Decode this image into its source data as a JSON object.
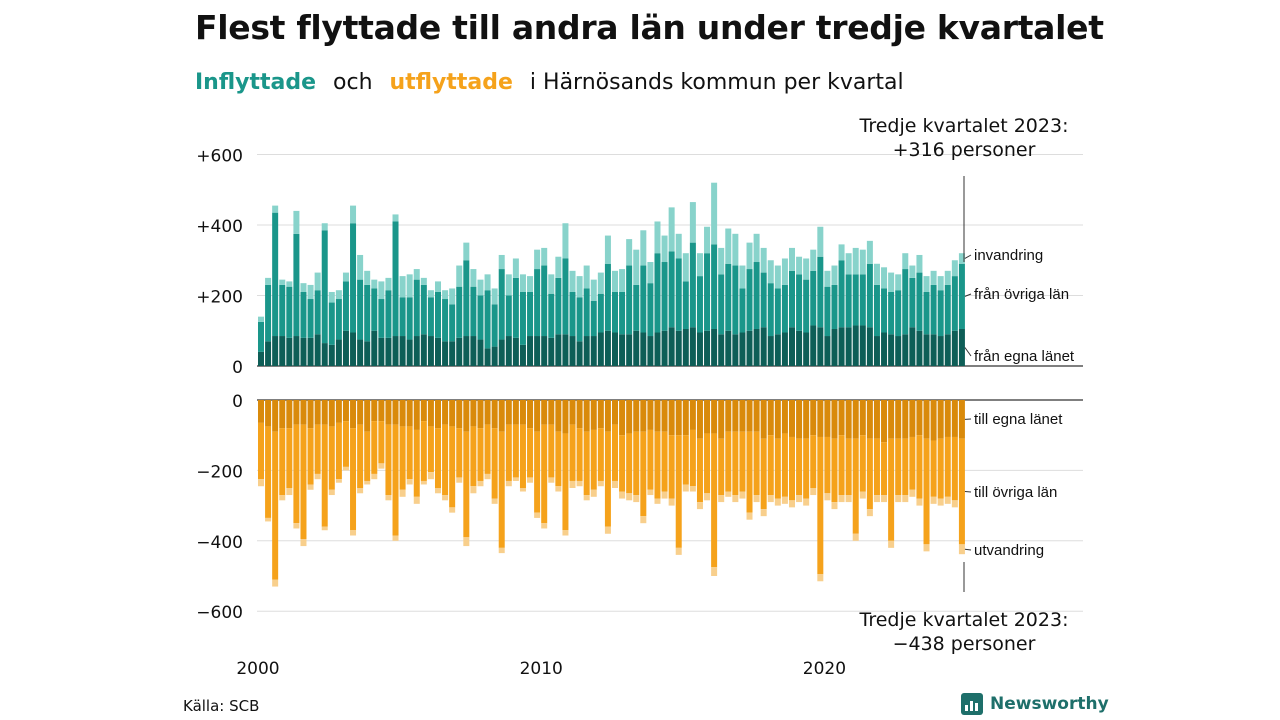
{
  "title": "Flest flyttade till andra län under tredje kvartalet",
  "subtitle": {
    "part_in": "Inflyttade",
    "part_and": "och",
    "part_out": "utflyttade",
    "part_rest": "i Härnösands  kommun  per  kvartal"
  },
  "source": "Källa: SCB",
  "brand": "Newsworthy",
  "colors": {
    "in_own": "#0e5e57",
    "in_other": "#1a968a",
    "in_abroad": "#88d3cb",
    "out_own": "#d98a0b",
    "out_other": "#f5a21b",
    "out_abroad": "#f8cf8c"
  },
  "chart_data": {
    "type": "bar",
    "stacked": true,
    "x_start": "2000 Q1",
    "x_ticks": [
      "2000",
      "2010",
      "2020"
    ],
    "annotation_top": [
      "Tredje kvartalet 2023:",
      "+316 personer"
    ],
    "annotation_bottom": [
      "Tredje kvartalet 2023:",
      "−438 personer"
    ],
    "inflow": {
      "ylim": [
        0,
        650
      ],
      "ticks": [
        "0",
        "+200",
        "+400",
        "+600"
      ],
      "tick_values": [
        0,
        200,
        400,
        600
      ],
      "series": [
        {
          "name": "från egna länet",
          "values": [
            40,
            70,
            85,
            85,
            80,
            85,
            80,
            80,
            90,
            65,
            60,
            75,
            100,
            95,
            75,
            70,
            100,
            80,
            80,
            85,
            85,
            75,
            85,
            90,
            85,
            80,
            70,
            70,
            80,
            85,
            85,
            75,
            50,
            55,
            75,
            85,
            80,
            60,
            85,
            85,
            85,
            80,
            90,
            90,
            85,
            70,
            85,
            85,
            95,
            100,
            95,
            90,
            90,
            100,
            95,
            85,
            95,
            100,
            110,
            100,
            105,
            110,
            95,
            100,
            105,
            90,
            100,
            90,
            95,
            100,
            105,
            110,
            85,
            90,
            95,
            110,
            100,
            95,
            115,
            110,
            85,
            105,
            110,
            110,
            115,
            115,
            110,
            85,
            95,
            90,
            85,
            90,
            110,
            100,
            90,
            90,
            85,
            90,
            100,
            105
          ]
        },
        {
          "name": "från övriga län",
          "values": [
            85,
            160,
            350,
            145,
            145,
            290,
            130,
            110,
            125,
            320,
            120,
            115,
            140,
            310,
            170,
            160,
            120,
            110,
            135,
            325,
            110,
            120,
            160,
            140,
            110,
            130,
            120,
            105,
            145,
            215,
            140,
            125,
            165,
            120,
            200,
            115,
            170,
            150,
            125,
            190,
            200,
            125,
            160,
            215,
            125,
            125,
            135,
            100,
            110,
            190,
            115,
            120,
            195,
            130,
            190,
            150,
            225,
            195,
            215,
            205,
            135,
            240,
            160,
            220,
            240,
            170,
            190,
            195,
            125,
            175,
            190,
            155,
            150,
            130,
            135,
            160,
            160,
            150,
            155,
            200,
            140,
            125,
            190,
            150,
            145,
            145,
            180,
            145,
            125,
            120,
            130,
            185,
            140,
            165,
            120,
            140,
            130,
            140,
            155,
            185
          ]
        },
        {
          "name": "invandring",
          "values": [
            15,
            20,
            20,
            15,
            15,
            65,
            25,
            40,
            50,
            20,
            30,
            25,
            25,
            50,
            70,
            40,
            25,
            50,
            35,
            20,
            60,
            65,
            30,
            20,
            20,
            30,
            25,
            45,
            60,
            50,
            50,
            45,
            45,
            45,
            40,
            60,
            55,
            50,
            45,
            55,
            50,
            55,
            60,
            100,
            60,
            60,
            65,
            60,
            60,
            80,
            60,
            65,
            75,
            100,
            100,
            60,
            90,
            75,
            125,
            70,
            80,
            115,
            65,
            75,
            175,
            75,
            100,
            90,
            65,
            75,
            80,
            70,
            65,
            65,
            75,
            65,
            50,
            60,
            60,
            85,
            45,
            55,
            45,
            60,
            75,
            70,
            65,
            60,
            60,
            55,
            45,
            45,
            35,
            50,
            45,
            40,
            40,
            40,
            45,
            30
          ]
        }
      ]
    },
    "outflow": {
      "ylim": [
        -600,
        0
      ],
      "ticks": [
        "0",
        "−200",
        "−400",
        "−600"
      ],
      "tick_values": [
        0,
        -200,
        -400,
        -600
      ],
      "series": [
        {
          "name": "till egna länet",
          "values": [
            -65,
            -75,
            -90,
            -80,
            -80,
            -70,
            -70,
            -80,
            -70,
            -70,
            -75,
            -65,
            -60,
            -80,
            -70,
            -90,
            -60,
            -60,
            -70,
            -70,
            -75,
            -75,
            -85,
            -60,
            -75,
            -80,
            -70,
            -75,
            -80,
            -90,
            -75,
            -80,
            -70,
            -80,
            -90,
            -70,
            -70,
            -70,
            -80,
            -90,
            -70,
            -70,
            -90,
            -95,
            -70,
            -80,
            -90,
            -85,
            -80,
            -90,
            -70,
            -100,
            -95,
            -90,
            -90,
            -85,
            -90,
            -90,
            -100,
            -100,
            -100,
            -85,
            -110,
            -95,
            -95,
            -110,
            -90,
            -90,
            -90,
            -90,
            -90,
            -110,
            -100,
            -110,
            -95,
            -105,
            -110,
            -110,
            -100,
            -105,
            -105,
            -110,
            -100,
            -110,
            -110,
            -100,
            -110,
            -110,
            -120,
            -110,
            -110,
            -110,
            -105,
            -100,
            -110,
            -115,
            -110,
            -105,
            -105,
            -110
          ]
        },
        {
          "name": "till övriga län",
          "values": [
            -160,
            -260,
            -420,
            -190,
            -170,
            -280,
            -325,
            -160,
            -140,
            -290,
            -180,
            -160,
            -130,
            -290,
            -180,
            -140,
            -150,
            -120,
            -200,
            -315,
            -180,
            -150,
            -190,
            -170,
            -130,
            -170,
            -200,
            -230,
            -140,
            -300,
            -170,
            -150,
            -140,
            -200,
            -330,
            -160,
            -150,
            -180,
            -140,
            -230,
            -280,
            -150,
            -155,
            -275,
            -160,
            -150,
            -180,
            -170,
            -150,
            -270,
            -160,
            -160,
            -170,
            -180,
            -240,
            -170,
            -190,
            -170,
            -180,
            -320,
            -140,
            -160,
            -180,
            -170,
            -380,
            -160,
            -170,
            -180,
            -170,
            -230,
            -180,
            -200,
            -170,
            -170,
            -180,
            -180,
            -160,
            -170,
            -150,
            -390,
            -160,
            -180,
            -170,
            -160,
            -270,
            -160,
            -200,
            -160,
            -150,
            -290,
            -160,
            -160,
            -150,
            -180,
            -300,
            -160,
            -170,
            -170,
            -180,
            -300
          ]
        },
        {
          "name": "utvandring",
          "values": [
            -20,
            -10,
            -20,
            -15,
            -20,
            -15,
            -20,
            -15,
            -15,
            -10,
            -15,
            -10,
            -10,
            -15,
            -15,
            -10,
            -15,
            -15,
            -15,
            -15,
            -20,
            -15,
            -20,
            -10,
            -20,
            -15,
            -15,
            -15,
            -15,
            -25,
            -20,
            -15,
            -15,
            -15,
            -15,
            -15,
            -10,
            -10,
            -15,
            -15,
            -15,
            -15,
            -15,
            -15,
            -20,
            -15,
            -15,
            -20,
            -15,
            -20,
            -20,
            -20,
            -20,
            -20,
            -20,
            -15,
            -15,
            -20,
            -20,
            -20,
            -20,
            -15,
            -20,
            -20,
            -25,
            -20,
            -15,
            -20,
            -20,
            -20,
            -20,
            -20,
            -20,
            -20,
            -20,
            -20,
            -20,
            -20,
            -20,
            -20,
            -20,
            -20,
            -20,
            -20,
            -20,
            -20,
            -20,
            -20,
            -20,
            -20,
            -20,
            -20,
            -20,
            -20,
            -20,
            -20,
            -20,
            -20,
            -20,
            -28
          ]
        }
      ]
    }
  }
}
